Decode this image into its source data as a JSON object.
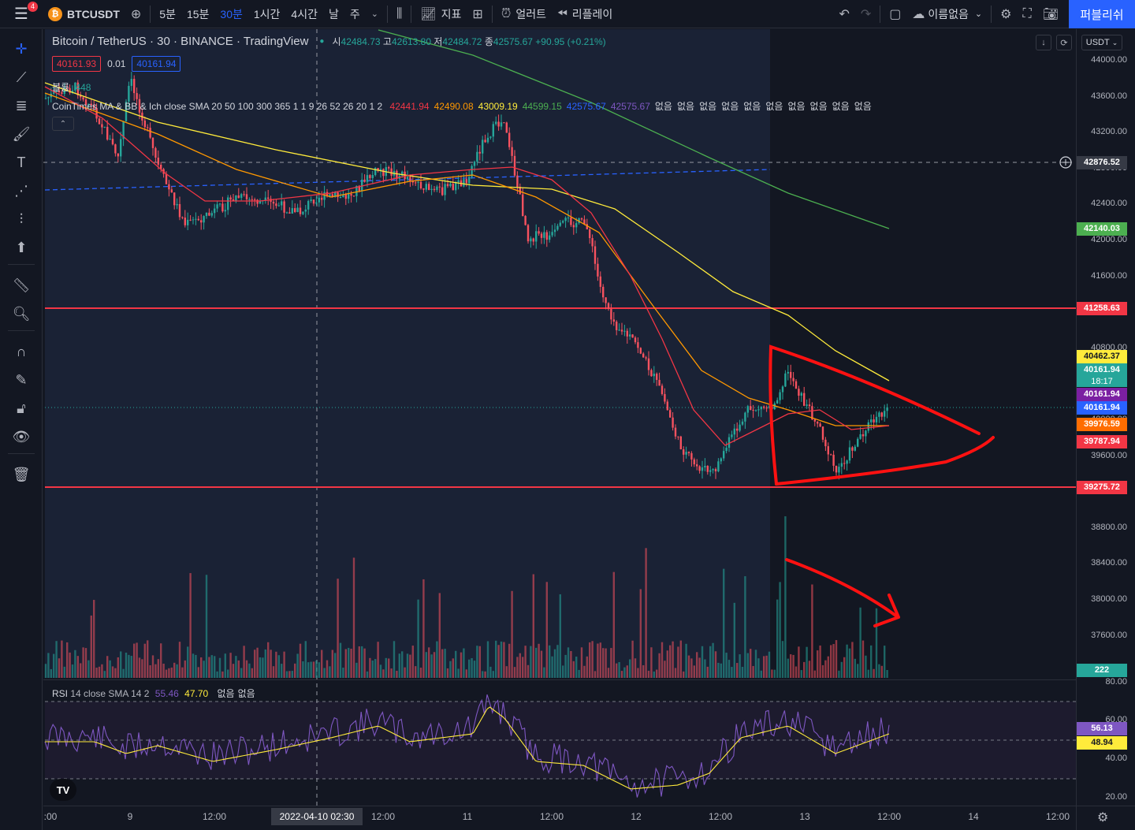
{
  "topbar": {
    "menu_badge": "4",
    "symbol": "BTCUSDT",
    "intervals": [
      "5분",
      "15분",
      "30분",
      "1시간",
      "4시간",
      "날",
      "주"
    ],
    "active_interval": "30분",
    "indicators_label": "지표",
    "alert_label": "얼러트",
    "replay_label": "리플레이",
    "layout_name": "이름없음",
    "publish_label": "퍼블리쉬"
  },
  "legend": {
    "title": "Bitcoin / TetherUS · 30 · BINANCE · TradingView",
    "o_label": "시",
    "o": "42484.73",
    "h_label": "고",
    "h": "42613.80",
    "l_label": "저",
    "l": "42484.72",
    "c_label": "종",
    "c": "42575.67",
    "change": "+90.95 (+0.21%)",
    "bid": "40161.93",
    "spread": "0.01",
    "ask": "40161.94",
    "volume_label": "볼륨",
    "volume_value": "448",
    "indicator_name": "CoinTimes MA & BB & Ich",
    "indicator_params": "close SMA 20 50 100 300 365 1 1 9 26 52 26 20 1 2",
    "indicator_values": [
      {
        "v": "42441.94",
        "color": "#f23645"
      },
      {
        "v": "42490.08",
        "color": "#ff9800"
      },
      {
        "v": "43009.19",
        "color": "#ffeb3b"
      },
      {
        "v": "44599.15",
        "color": "#4caf50"
      },
      {
        "v": "42575.67",
        "color": "#2962ff"
      },
      {
        "v": "42575.67",
        "color": "#7e57c2"
      }
    ],
    "none_label": "없음",
    "none_count": 10,
    "rsi_name": "RSI",
    "rsi_params": "14 close SMA 14 2",
    "rsi_value": "55.46",
    "rsi_ma": "47.70"
  },
  "price_axis": {
    "currency": "USDT",
    "ticks": [
      "44000.00",
      "43600.00",
      "43200.00",
      "42800.00",
      "42400.00",
      "42000.00",
      "41600.00",
      "41200.00",
      "40800.00",
      "40400.00",
      "40000.00",
      "39600.00",
      "39200.00",
      "38800.00",
      "38400.00",
      "38000.00",
      "37600.00",
      "37200.00"
    ],
    "tags": [
      {
        "v": "42876.52",
        "bg": "#363a45"
      },
      {
        "v": "42140.03",
        "bg": "#4caf50"
      },
      {
        "v": "41258.63",
        "bg": "#f23645"
      },
      {
        "v": "40462.37",
        "bg": "#ffeb3b",
        "fg": "#131722"
      },
      {
        "v": "40161.94",
        "bg": "#26a69a",
        "sub": "18:17"
      },
      {
        "v": "40161.94",
        "bg": "#7b1fa2"
      },
      {
        "v": "40161.94",
        "bg": "#2962ff"
      },
      {
        "v": "39976.59",
        "bg": "#ff6d00"
      },
      {
        "v": "39787.94",
        "bg": "#f23645"
      },
      {
        "v": "39275.72",
        "bg": "#f23645"
      },
      {
        "v": "222",
        "bg": "#26a69a"
      }
    ],
    "rsi_ticks": [
      "80.00",
      "60.00",
      "40.00",
      "20.00"
    ],
    "rsi_tags": [
      {
        "v": "56.13",
        "bg": "#7e57c2"
      },
      {
        "v": "48.94",
        "bg": "#ffeb3b",
        "fg": "#131722"
      }
    ]
  },
  "time_axis": {
    "labels": [
      ":00",
      "9",
      "12:00",
      "12:00",
      "11",
      "12:00",
      "12",
      "12:00",
      "13",
      "12:00",
      "14",
      "12:00"
    ],
    "crosshair": "2022-04-10   02:30"
  },
  "chart_data": {
    "type": "candlestick",
    "symbol": "BTCUSDT",
    "interval": "30",
    "ylim": [
      37200,
      44200
    ],
    "horizontal_lines": [
      41258.63,
      39275.72,
      42876.52
    ],
    "price_path": [
      43750,
      43580,
      42900,
      42250,
      42300,
      42150,
      42200,
      42400,
      42500,
      42550,
      42400,
      42350,
      42450,
      42600,
      42700,
      42750,
      42700,
      42650,
      42600,
      42700,
      43300,
      43350,
      42800,
      42100,
      42200,
      42250,
      42300,
      41500,
      41100,
      40800,
      40500,
      40100,
      39700,
      39400,
      39300,
      39500,
      39700,
      39900,
      40000,
      40050,
      40100,
      40400,
      40300,
      40050,
      39600,
      39400,
      39700,
      39900,
      40100,
      40161.94
    ],
    "rsi": {
      "value": 55.46,
      "ma": 47.7,
      "ylim": [
        20,
        80
      ]
    }
  }
}
